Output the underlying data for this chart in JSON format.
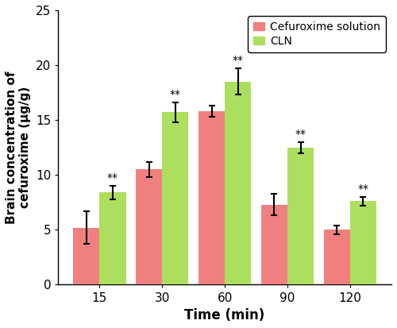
{
  "time_labels": [
    "15",
    "30",
    "60",
    "90",
    "120"
  ],
  "cef_values": [
    5.2,
    10.5,
    15.8,
    7.3,
    5.0
  ],
  "cef_errors": [
    1.5,
    0.7,
    0.5,
    1.0,
    0.4
  ],
  "cln_values": [
    8.4,
    15.7,
    18.5,
    12.5,
    7.6
  ],
  "cln_errors": [
    0.6,
    0.9,
    1.2,
    0.5,
    0.4
  ],
  "cef_color": "#F08080",
  "cln_color": "#ADDF5F",
  "xlabel": "Time (min)",
  "ylabel": "Brain concentration of\ncefuroxime (μg/g)",
  "ylim": [
    0,
    25
  ],
  "yticks": [
    0,
    5,
    10,
    15,
    20,
    25
  ],
  "legend_labels": [
    "Cefuroxime solution",
    "CLN"
  ],
  "bar_width": 0.42,
  "significance_label": "**",
  "xlabel_fontsize": 12,
  "ylabel_fontsize": 11,
  "tick_fontsize": 11,
  "legend_fontsize": 10
}
